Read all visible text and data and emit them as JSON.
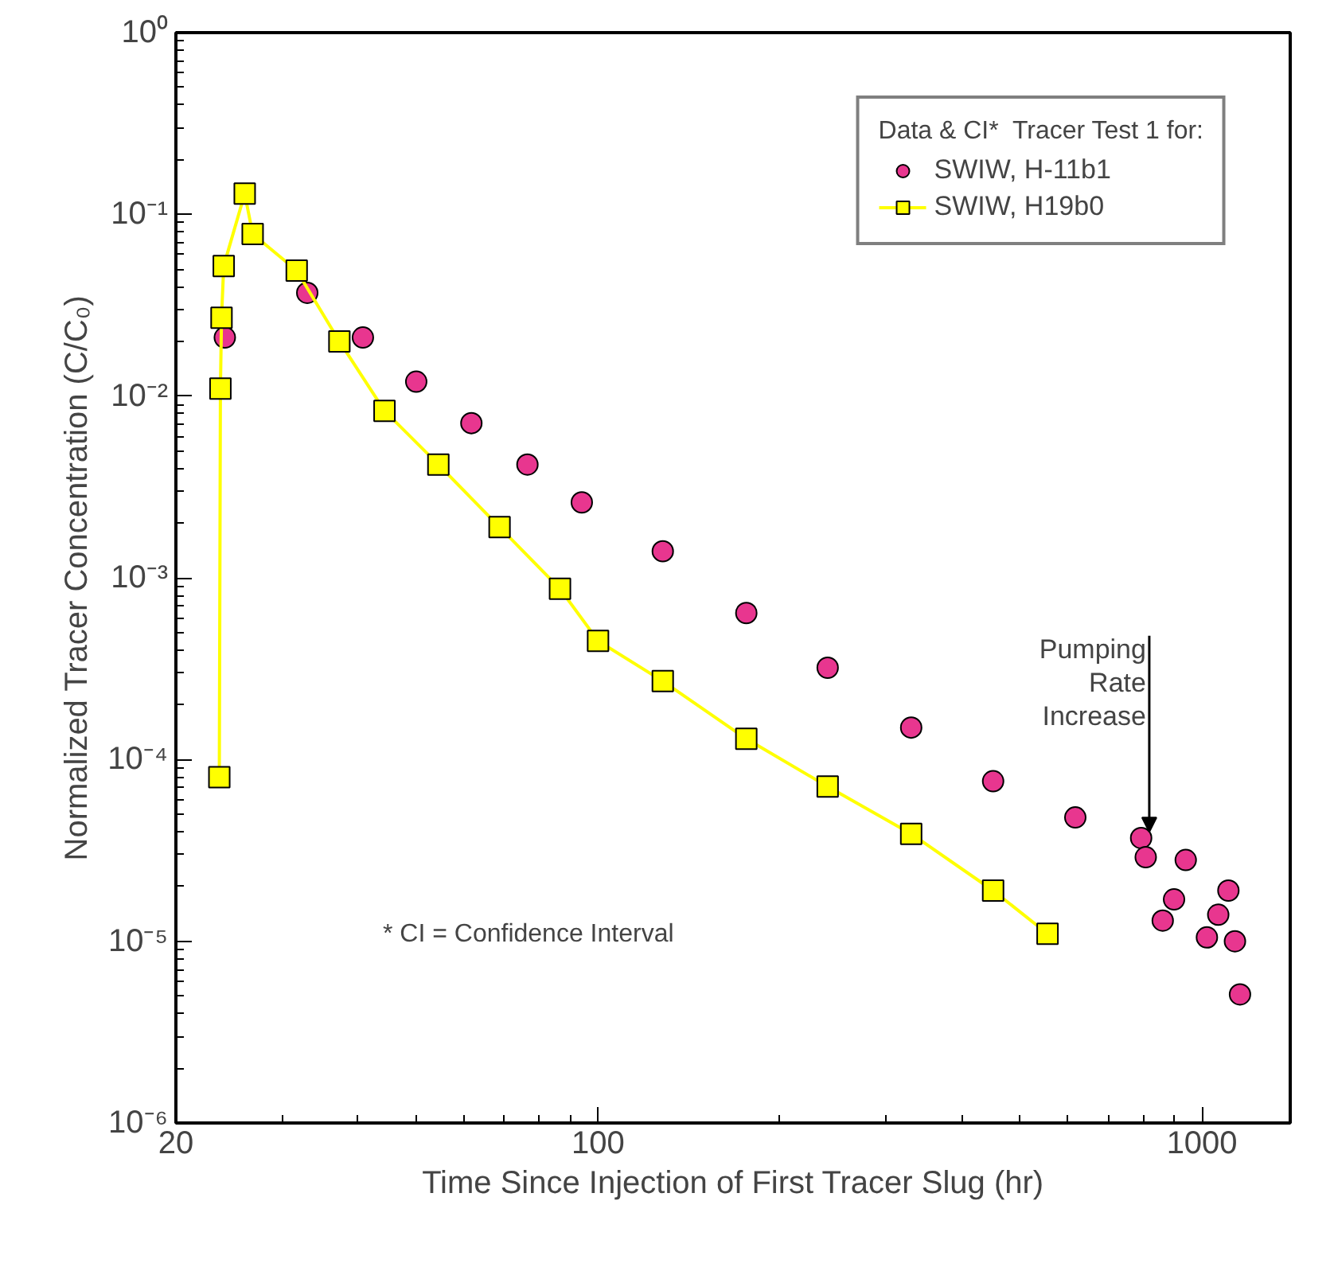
{
  "chart_data": {
    "type": "line",
    "xlabel": "Time Since Injection of First Tracer Slug (hr)",
    "ylabel": "Normalized Tracer Concentration (C/C₀)",
    "legend_title": "Data & CI*  Tracer Test 1 for:",
    "log": "xy",
    "grid": false,
    "legend": "top right",
    "xlim": [
      20,
      1400
    ],
    "xticks": [
      20,
      100,
      1000
    ],
    "ylim": [
      1e-06,
      1
    ],
    "yticks": [
      {
        "value": 1e-06,
        "label": "10⁻⁶"
      },
      {
        "value": 1e-05,
        "label": "10⁻⁵"
      },
      {
        "value": 0.0001,
        "label": "10⁻⁴"
      },
      {
        "value": 0.001,
        "label": "10⁻³"
      },
      {
        "value": 0.01,
        "label": "10⁻²"
      },
      {
        "value": 0.1,
        "label": "10⁻¹"
      },
      {
        "value": 1,
        "label": "10⁰"
      }
    ],
    "series": [
      {
        "name": "SWIW, H-11b1",
        "type": "scatter",
        "marker": "circle",
        "color": "#e8368f",
        "x": [
          24.1,
          26,
          26.8,
          33,
          40.8,
          50,
          61.7,
          76.4,
          94,
          128,
          176,
          240,
          330,
          451,
          617,
          793,
          807,
          861,
          899,
          940,
          1019,
          1064,
          1106,
          1134,
          1156
        ],
        "values": [
          0.021,
          null,
          null,
          0.037,
          0.021,
          0.012,
          0.0071,
          0.0042,
          0.0026,
          0.0014,
          0.00064,
          0.00032,
          0.00015,
          7.6e-05,
          4.8e-05,
          3.7e-05,
          2.9e-05,
          1.3e-05,
          1.7e-05,
          2.8e-05,
          1.05e-05,
          1.4e-05,
          1.9e-05,
          1e-05,
          5.1e-06
        ]
      },
      {
        "name": "SWIW, H19b0",
        "marker": "square",
        "color": "#ffff00",
        "x": [
          23.6,
          23.7,
          23.8,
          24,
          26,
          26.8,
          31.7,
          37.3,
          44.3,
          54.4,
          68.7,
          86.5,
          100,
          128,
          176,
          240,
          330,
          451,
          555
        ],
        "values": [
          8e-05,
          0.011,
          0.027,
          0.052,
          0.13,
          0.078,
          0.049,
          0.02,
          0.0083,
          0.0042,
          0.0019,
          0.00087,
          0.00045,
          0.00027,
          0.00013,
          7.1e-05,
          3.9e-05,
          1.9e-05,
          1.1e-05
        ]
      }
    ],
    "annotations": [
      {
        "text": "Pumping\nRate\nIncrease",
        "x": 818,
        "y": 4e-05
      },
      "* CI = Confidence Interval"
    ]
  }
}
